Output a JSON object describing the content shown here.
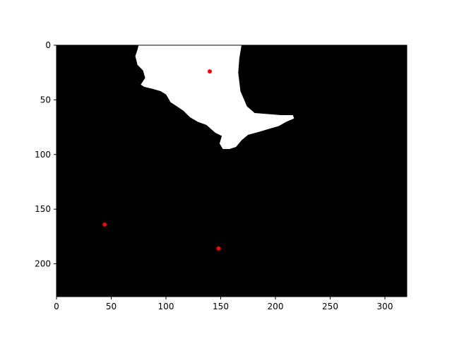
{
  "chart_data": {
    "type": "scatter",
    "title": "",
    "xlabel": "",
    "ylabel": "",
    "xlim": [
      0,
      320
    ],
    "ylim": [
      230,
      0
    ],
    "x_ticks": [
      0,
      50,
      100,
      150,
      200,
      250,
      300
    ],
    "y_ticks": [
      0,
      50,
      100,
      150,
      200
    ],
    "x_tick_labels": [
      "0",
      "50",
      "100",
      "150",
      "200",
      "250",
      "300"
    ],
    "y_tick_labels": [
      "0",
      "50",
      "100",
      "150",
      "200"
    ],
    "grid": false,
    "background": "binary image (black background with white region)",
    "image_background_color": "#000000",
    "mask_color": "#ffffff",
    "mask_polygon": [
      [
        75,
        0
      ],
      [
        169,
        0
      ],
      [
        167,
        12
      ],
      [
        166,
        25
      ],
      [
        168,
        42
      ],
      [
        174,
        56
      ],
      [
        181,
        62
      ],
      [
        193,
        63
      ],
      [
        205,
        64
      ],
      [
        216,
        64
      ],
      [
        217,
        67
      ],
      [
        210,
        70
      ],
      [
        203,
        74
      ],
      [
        196,
        76
      ],
      [
        186,
        79
      ],
      [
        175,
        82
      ],
      [
        169,
        87
      ],
      [
        164,
        93
      ],
      [
        158,
        95
      ],
      [
        152,
        95
      ],
      [
        149,
        90
      ],
      [
        151,
        83
      ],
      [
        145,
        80
      ],
      [
        137,
        73
      ],
      [
        129,
        70
      ],
      [
        122,
        66
      ],
      [
        116,
        60
      ],
      [
        110,
        56
      ],
      [
        104,
        52
      ],
      [
        103,
        50
      ],
      [
        100,
        45
      ],
      [
        95,
        42
      ],
      [
        88,
        40
      ],
      [
        80,
        38
      ],
      [
        77,
        36
      ],
      [
        81,
        30
      ],
      [
        79,
        23
      ],
      [
        74,
        18
      ],
      [
        72,
        10
      ],
      [
        74,
        4
      ]
    ],
    "series": [
      {
        "marker": "o",
        "color": "#ff0000",
        "points": [
          {
            "x": 140,
            "y": 24
          },
          {
            "x": 44,
            "y": 164
          },
          {
            "x": 148,
            "y": 186
          }
        ]
      }
    ]
  }
}
